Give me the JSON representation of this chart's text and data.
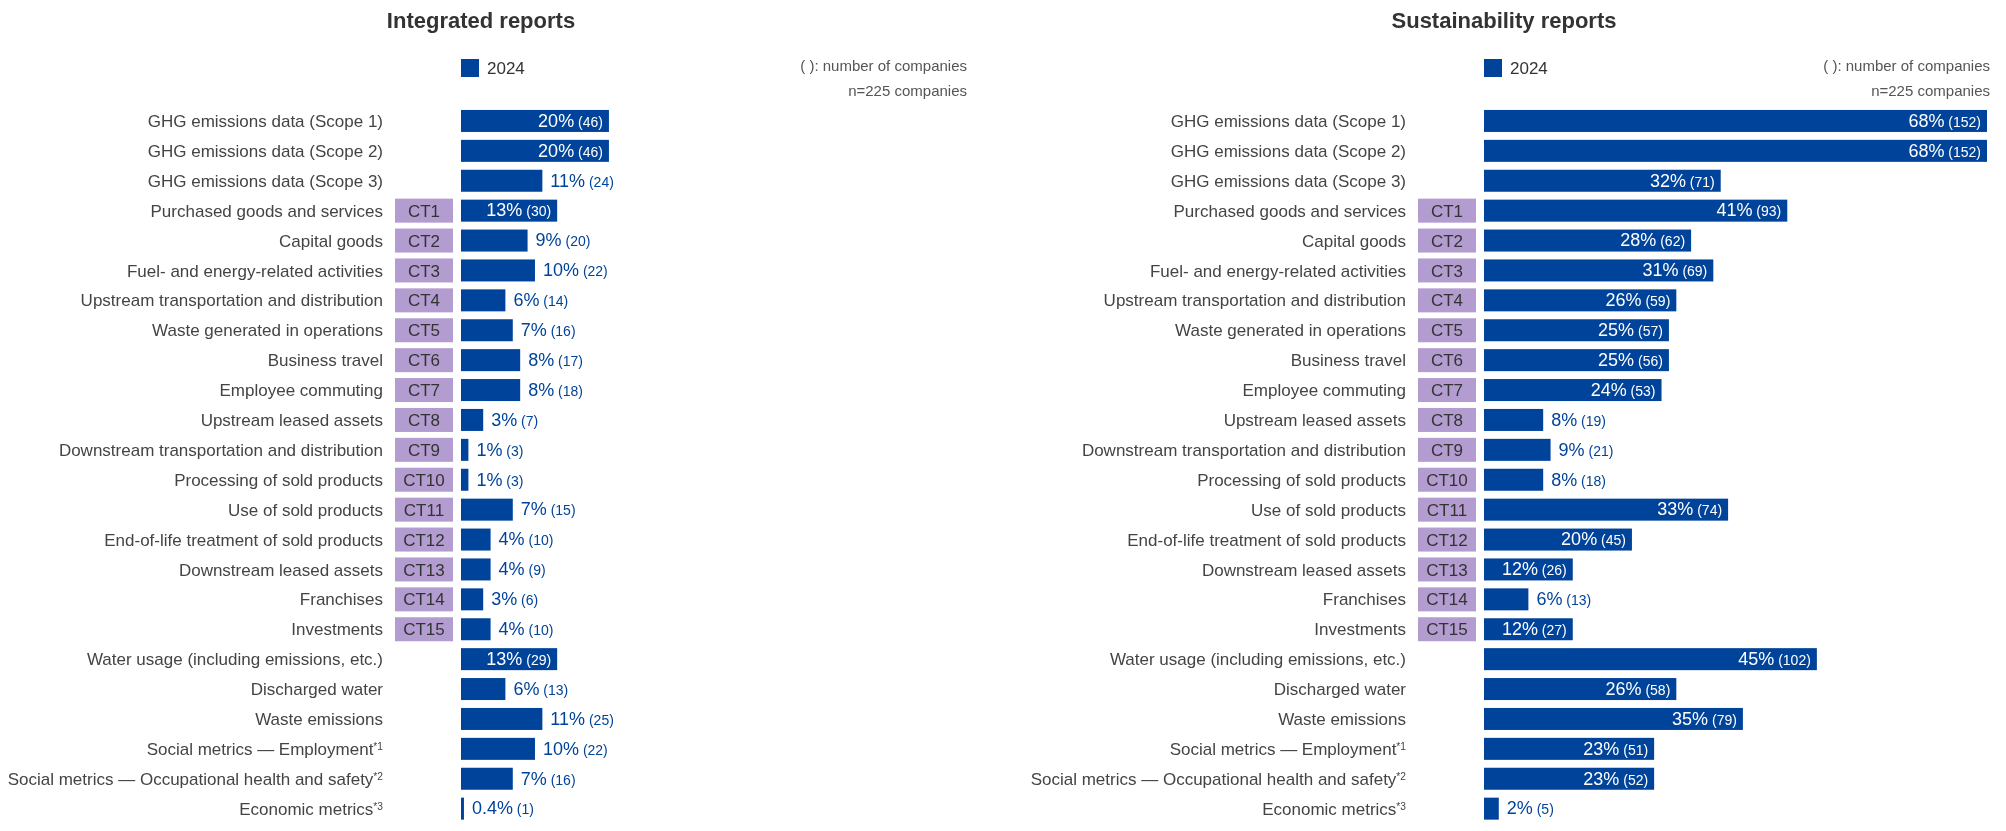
{
  "chart_data": [
    {
      "type": "bar",
      "orientation": "horizontal",
      "title": "Integrated reports",
      "legend": "top left",
      "categories": [
        "GHG emissions data (Scope 1)",
        "GHG emissions data (Scope 2)",
        "GHG emissions data (Scope 3)",
        "Purchased goods and services",
        "Capital goods",
        "Fuel- and energy-related activities",
        "Upstream transportation and distribution",
        "Waste generated in operations",
        "Business travel",
        "Employee commuting",
        "Upstream leased assets",
        "Downstream transportation and distribution",
        "Processing of sold products",
        "Use of sold products",
        "End-of-life treatment of sold products",
        "Downstream leased assets",
        "Franchises",
        "Investments",
        "Water usage (including emissions, etc.)",
        "Discharged water",
        "Waste emissions",
        "Social metrics — Employment$^{*1}$",
        "Social metrics — Occupational health and safety$^{*2}$",
        "Economic metrics$^{*3}$"
      ],
      "series": [
        {
          "name": "2024",
          "color": "#00439a",
          "values": [
            20,
            20,
            11,
            13,
            9,
            10,
            6,
            7,
            8,
            8,
            3,
            1,
            1,
            7,
            4,
            4,
            3,
            4,
            13,
            6,
            11,
            10,
            7,
            0.4
          ],
          "value_labels": [
            "20% (46)",
            "20% (46)",
            "11% (24)",
            "13% (30)",
            "9% (20)",
            "10% (22)",
            "6% (14)",
            "7% (16)",
            "8% (17)",
            "8% (18)",
            "3% (7)",
            "1% (3)",
            "1% (3)",
            "7% (15)",
            "4% (10)",
            "4% (9)",
            "3% (6)",
            "4% (10)",
            "13% (29)",
            "6% (13)",
            "11% (25)",
            "10% (22)",
            "7% (16)",
            "0.4% (1)"
          ]
        }
      ],
      "annotations": [
        "( ): number of companies",
        "n=225 companies",
        "CT1",
        "CT2",
        "CT3",
        "CT4",
        "CT5",
        "CT6",
        "CT7",
        "CT8",
        "CT9",
        "CT10",
        "CT11",
        "CT12",
        "CT13",
        "CT14",
        "CT15"
      ]
    },
    {
      "type": "bar",
      "orientation": "horizontal",
      "title": "Sustainability reports",
      "legend": "top left",
      "categories": [
        "GHG emissions data (Scope 1)",
        "GHG emissions data (Scope 2)",
        "GHG emissions data (Scope 3)",
        "Purchased goods and services",
        "Capital goods",
        "Fuel- and energy-related activities",
        "Upstream transportation and distribution",
        "Waste generated in operations",
        "Business travel",
        "Employee commuting",
        "Upstream leased assets",
        "Downstream transportation and distribution",
        "Processing of sold products",
        "Use of sold products",
        "End-of-life treatment of sold products",
        "Downstream leased assets",
        "Franchises",
        "Investments",
        "Water usage (including emissions, etc.)",
        "Discharged water",
        "Waste emissions",
        "Social metrics — Employment$^{*1}$",
        "Social metrics — Occupational health and safety$^{*2}$",
        "Economic metrics$^{*3}$"
      ],
      "series": [
        {
          "name": "2024",
          "color": "#00439a",
          "values": [
            68,
            68,
            32,
            41,
            28,
            31,
            26,
            25,
            25,
            24,
            8,
            9,
            8,
            33,
            20,
            12,
            6,
            12,
            45,
            26,
            35,
            23,
            23,
            2
          ],
          "value_labels": [
            "68% (152)",
            "68% (152)",
            "32% (71)",
            "41% (93)",
            "28% (62)",
            "31% (69)",
            "26% (59)",
            "25% (57)",
            "25% (56)",
            "24% (53)",
            "8% (19)",
            "9% (21)",
            "8% (18)",
            "33% (74)",
            "20% (45)",
            "12% (26)",
            "6% (13)",
            "12% (27)",
            "45% (102)",
            "26% (58)",
            "35% (79)",
            "23% (51)",
            "23% (52)",
            "2% (5)"
          ]
        }
      ],
      "annotations": [
        "( ): number of companies",
        "n=225 companies",
        "CT1",
        "CT2",
        "CT3",
        "CT4",
        "CT5",
        "CT6",
        "CT7",
        "CT8",
        "CT9",
        "CT10",
        "CT11",
        "CT12",
        "CT13",
        "CT14",
        "CT15"
      ]
    }
  ]
}
